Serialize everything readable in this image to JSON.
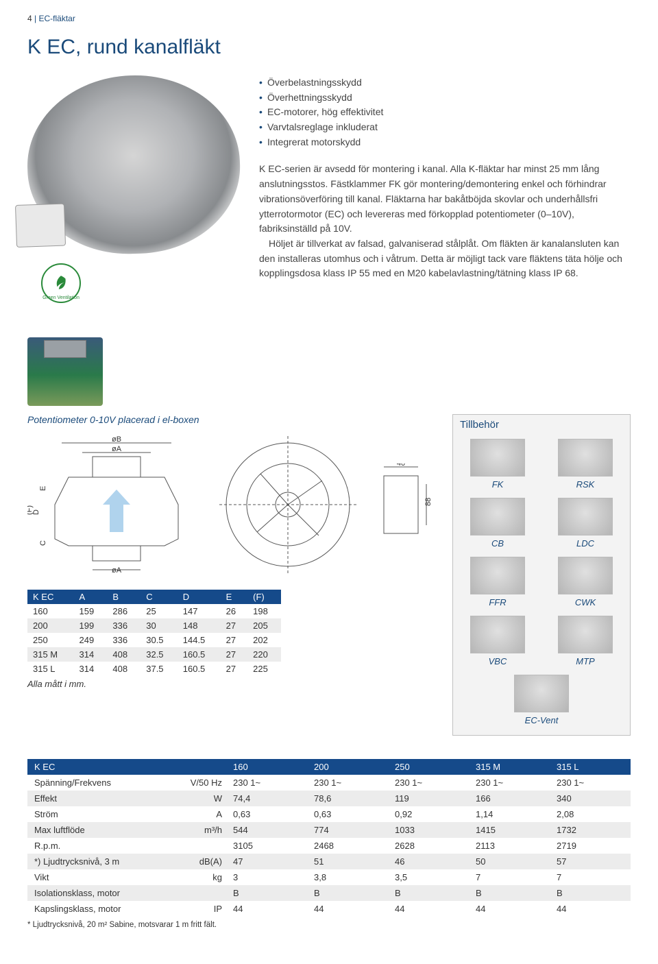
{
  "header": {
    "page_number": "4",
    "separator": "|",
    "section": "EC-fläktar"
  },
  "title": "K EC, rund kanalfläkt",
  "features": [
    "Överbelastningsskydd",
    "Överhettningsskydd",
    "EC-motorer, hög effektivitet",
    "Varvtalsreglage inkluderat",
    "Integrerat motorskydd"
  ],
  "body_paragraphs": [
    "K EC-serien är avsedd för montering i kanal. Alla K-fläktar har minst 25 mm lång anslutningsstos. Fästklammer FK gör montering/demontering enkel och förhindrar vibrationsöverföring till kanal. Fläktarna har bakåtböjda skovlar och underhållsfri ytterrotormotor (EC) och levereras med förkopplad potentiometer (0–10V), fabriksinställd på 10V.",
    "Höljet är tillverkat av falsad, galvaniserad stålplåt. Om fläkten är kanalansluten kan den installeras utomhus och i våtrum. Detta är möjligt tack vare fläktens täta hölje och kopplingsdosa klass IP 55 med en M20 kabelavlastning/tätning klass IP 68."
  ],
  "badge_label": "Green Ventilation",
  "elbox_caption": "Potentiometer 0-10V placerad i el-boxen",
  "tillbehor": {
    "title": "Tillbehör",
    "items": [
      "FK",
      "RSK",
      "CB",
      "LDC",
      "FFR",
      "CWK",
      "VBC",
      "MTP",
      "EC-Vent"
    ]
  },
  "drawing_labels": {
    "B": "øB",
    "A_top": "øA",
    "A_bot": "øA",
    "E": "E",
    "D": "D",
    "F": "(F)",
    "C": "C",
    "forty": "40",
    "eightyeight": "88"
  },
  "dim_table": {
    "headers": [
      "K EC",
      "A",
      "B",
      "C",
      "D",
      "E",
      "(F)"
    ],
    "rows": [
      [
        "160",
        "159",
        "286",
        "25",
        "147",
        "26",
        "198"
      ],
      [
        "200",
        "199",
        "336",
        "30",
        "148",
        "27",
        "205"
      ],
      [
        "250",
        "249",
        "336",
        "30.5",
        "144.5",
        "27",
        "202"
      ],
      [
        "315 M",
        "314",
        "408",
        "32.5",
        "160.5",
        "27",
        "220"
      ],
      [
        "315 L",
        "314",
        "408",
        "37.5",
        "160.5",
        "27",
        "225"
      ]
    ],
    "alt_rows": [
      1,
      3
    ],
    "note": "Alla mått i mm."
  },
  "spec_table": {
    "headers": [
      "K EC",
      "",
      "160",
      "200",
      "250",
      "315 M",
      "315 L"
    ],
    "unit_col_index": 1,
    "rows": [
      {
        "label": "Spänning/Frekvens",
        "unit": "V/50 Hz",
        "vals": [
          "230 1~",
          "230 1~",
          "230 1~",
          "230 1~",
          "230 1~"
        ],
        "alt": false
      },
      {
        "label": "Effekt",
        "unit": "W",
        "vals": [
          "74,4",
          "78,6",
          "119",
          "166",
          "340"
        ],
        "alt": true
      },
      {
        "label": "Ström",
        "unit": "A",
        "vals": [
          "0,63",
          "0,63",
          "0,92",
          "1,14",
          "2,08"
        ],
        "alt": false
      },
      {
        "label": "Max luftflöde",
        "unit": "m³/h",
        "vals": [
          "544",
          "774",
          "1033",
          "1415",
          "1732"
        ],
        "alt": true
      },
      {
        "label": "R.p.m.",
        "unit": "",
        "vals": [
          "3105",
          "2468",
          "2628",
          "2113",
          "2719"
        ],
        "alt": false
      },
      {
        "label": "*) Ljudtrycksnivå, 3 m",
        "unit": "dB(A)",
        "vals": [
          "47",
          "51",
          "46",
          "50",
          "57"
        ],
        "alt": true
      },
      {
        "label": "Vikt",
        "unit": "kg",
        "vals": [
          "3",
          "3,8",
          "3,5",
          "7",
          "7"
        ],
        "alt": false
      },
      {
        "label": "Isolationsklass, motor",
        "unit": "",
        "vals": [
          "B",
          "B",
          "B",
          "B",
          "B"
        ],
        "alt": true
      },
      {
        "label": "Kapslingsklass, motor",
        "unit": "IP",
        "vals": [
          "44",
          "44",
          "44",
          "44",
          "44"
        ],
        "alt": false
      }
    ],
    "footnote": "* Ljudtrycksnivå, 20 m² Sabine, motsvarar 1 m fritt fält."
  },
  "colors": {
    "brand_blue": "#154a8a",
    "text_blue": "#1a4a7a",
    "alt_row": "#ececec",
    "green": "#2a8a3a"
  }
}
